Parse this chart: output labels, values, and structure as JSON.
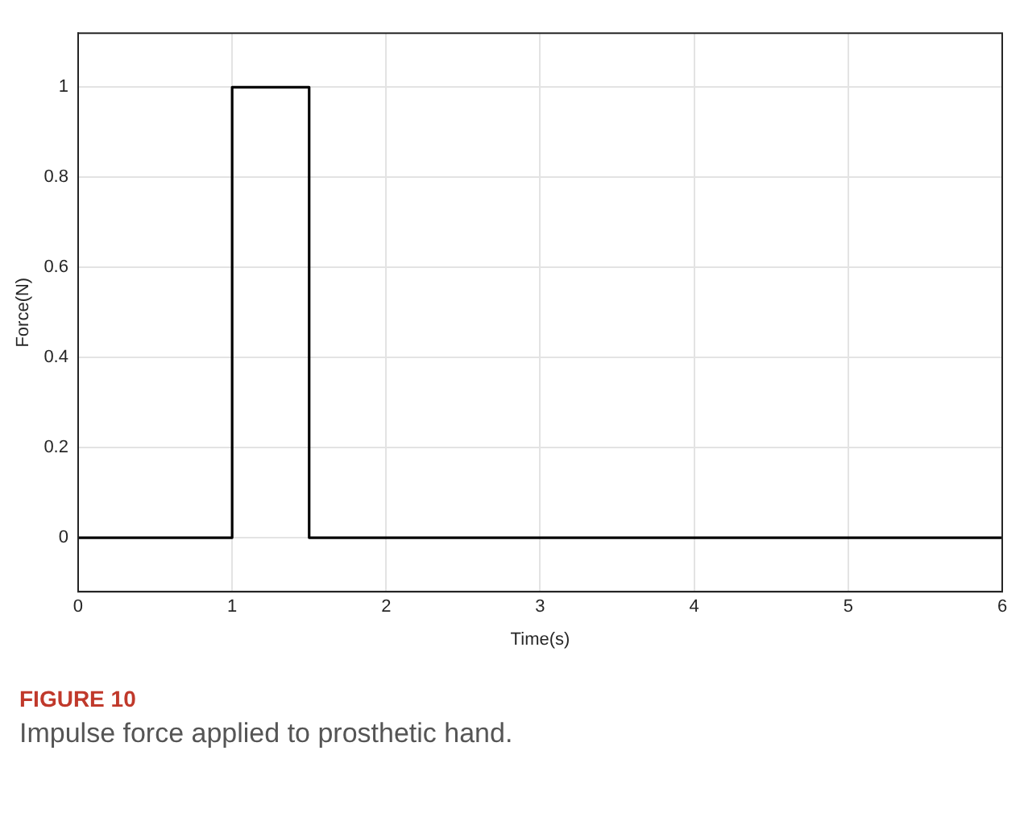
{
  "chart_data": {
    "type": "line",
    "title": "FIGURE 10",
    "subtitle": "Impulse force applied to prosthetic hand.",
    "xlabel": "Time(s)",
    "ylabel": "Force(N)",
    "series": [
      {
        "color": "#000000",
        "x": [
          0,
          1,
          1,
          1.5,
          1.5,
          6
        ],
        "values": [
          0,
          0,
          1,
          1,
          0,
          0
        ]
      }
    ],
    "xlim": [
      0,
      6
    ],
    "xticks": [
      0,
      1,
      2,
      3,
      4,
      5,
      6
    ],
    "ylim": [
      -0.12,
      1.12
    ],
    "yticks": [
      0,
      0.2,
      0.4,
      0.6,
      0.8,
      1
    ],
    "grid": true,
    "legend": false,
    "marker": "none",
    "line_style": "solid"
  }
}
